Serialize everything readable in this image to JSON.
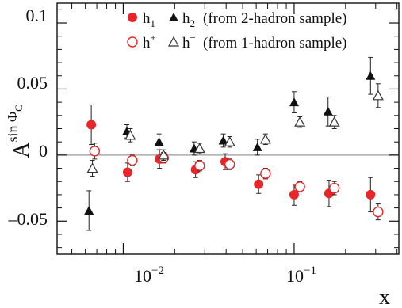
{
  "chart_data": {
    "type": "scatter",
    "xlabel": "x",
    "ylabel": "A",
    "ylabel_sup": "sin Φ",
    "ylabel_sub": "C",
    "xscale": "log",
    "xlim": [
      0.0041,
      0.41
    ],
    "ylim": [
      -0.075,
      0.115
    ],
    "y_ticks": [
      {
        "value": 0.1,
        "label": "0.1"
      },
      {
        "value": 0.05,
        "label": "0.05"
      },
      {
        "value": 0,
        "label": "0"
      },
      {
        "value": -0.05,
        "label": "–0.05"
      }
    ],
    "x_ticks": [
      {
        "value": 0.01,
        "base": "10",
        "exp": "−2"
      },
      {
        "value": 0.1,
        "base": "10",
        "exp": "−1"
      }
    ],
    "reference_line": 0,
    "legend_position": "top-right",
    "legend": {
      "row1": {
        "h1": "h",
        "h1_sub": "1",
        "h2": "h",
        "h2_sub": "2",
        "note": "(from 2-hadron sample)"
      },
      "row2": {
        "hp": "h",
        "hp_sup": "+",
        "hm": "h",
        "hm_sup": "−",
        "note": "(from 1-hadron sample)"
      }
    },
    "colors": {
      "h1": "#e8262a",
      "h2": "#111111",
      "hplus": "#e8262a",
      "hminus": "#333333"
    },
    "series": [
      {
        "key": "h1",
        "marker": "filled-circle",
        "points": [
          {
            "x": 0.0065,
            "y": 0.023,
            "err": 0.015
          },
          {
            "x": 0.0106,
            "y": -0.013,
            "err": 0.007
          },
          {
            "x": 0.0163,
            "y": -0.003,
            "err": 0.007
          },
          {
            "x": 0.0265,
            "y": -0.011,
            "err": 0.006
          },
          {
            "x": 0.0395,
            "y": -0.005,
            "err": 0.006
          },
          {
            "x": 0.062,
            "y": -0.022,
            "err": 0.007
          },
          {
            "x": 0.1,
            "y": -0.03,
            "err": 0.008
          },
          {
            "x": 0.16,
            "y": -0.029,
            "err": 0.01
          },
          {
            "x": 0.28,
            "y": -0.03,
            "err": 0.013
          }
        ]
      },
      {
        "key": "h2",
        "marker": "filled-triangle",
        "points": [
          {
            "x": 0.0063,
            "y": -0.042,
            "err": 0.015
          },
          {
            "x": 0.0105,
            "y": 0.018,
            "err": 0.005
          },
          {
            "x": 0.0162,
            "y": 0.01,
            "err": 0.006
          },
          {
            "x": 0.026,
            "y": 0.005,
            "err": 0.005
          },
          {
            "x": 0.0385,
            "y": 0.011,
            "err": 0.005
          },
          {
            "x": 0.061,
            "y": 0.006,
            "err": 0.006
          },
          {
            "x": 0.1,
            "y": 0.04,
            "err": 0.008
          },
          {
            "x": 0.158,
            "y": 0.033,
            "err": 0.011
          },
          {
            "x": 0.28,
            "y": 0.06,
            "err": 0.014
          }
        ]
      },
      {
        "key": "hplus",
        "marker": "open-circle",
        "points": [
          {
            "x": 0.0068,
            "y": 0.003,
            "err": 0.006
          },
          {
            "x": 0.0113,
            "y": -0.004,
            "err": 0.004
          },
          {
            "x": 0.0172,
            "y": -0.002,
            "err": 0.004
          },
          {
            "x": 0.028,
            "y": -0.008,
            "err": 0.004
          },
          {
            "x": 0.042,
            "y": -0.007,
            "err": 0.004
          },
          {
            "x": 0.068,
            "y": -0.014,
            "err": 0.004
          },
          {
            "x": 0.108,
            "y": -0.024,
            "err": 0.004
          },
          {
            "x": 0.172,
            "y": -0.025,
            "err": 0.005
          },
          {
            "x": 0.31,
            "y": -0.043,
            "err": 0.006
          }
        ]
      },
      {
        "key": "hminus",
        "marker": "open-triangle",
        "points": [
          {
            "x": 0.0066,
            "y": -0.01,
            "err": 0.006
          },
          {
            "x": 0.011,
            "y": 0.015,
            "err": 0.005
          },
          {
            "x": 0.0172,
            "y": 0.0,
            "err": 0.004
          },
          {
            "x": 0.028,
            "y": 0.005,
            "err": 0.004
          },
          {
            "x": 0.042,
            "y": 0.01,
            "err": 0.004
          },
          {
            "x": 0.068,
            "y": 0.012,
            "err": 0.004
          },
          {
            "x": 0.108,
            "y": 0.025,
            "err": 0.004
          },
          {
            "x": 0.172,
            "y": 0.025,
            "err": 0.005
          },
          {
            "x": 0.31,
            "y": 0.045,
            "err": 0.009
          }
        ]
      }
    ]
  }
}
